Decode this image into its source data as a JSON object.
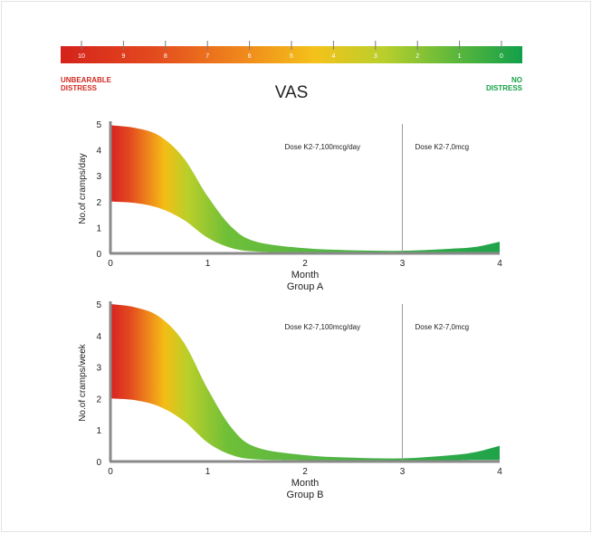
{
  "vas_scale": {
    "title": "VAS",
    "ticks": [
      "10",
      "9",
      "8",
      "7",
      "6",
      "5",
      "4",
      "3",
      "2",
      "1",
      "0"
    ],
    "left_label": [
      "UNBEARABLE",
      "DISTRESS"
    ],
    "right_label": [
      "NO",
      "DISTRESS"
    ],
    "left_color": "#d42a22",
    "right_color": "#14a146"
  },
  "chart_data": [
    {
      "type": "area",
      "title": "Group A",
      "xlabel": "Month",
      "ylabel": "No.of cramps/day",
      "xlim": [
        0,
        4
      ],
      "ylim": [
        0,
        5
      ],
      "xticks": [
        "0",
        "1",
        "2",
        "3",
        "4"
      ],
      "yticks": [
        "0",
        "1",
        "2",
        "3",
        "4",
        "5"
      ],
      "x": [
        0,
        0.25,
        0.5,
        0.75,
        1.0,
        1.25,
        1.5,
        2.0,
        2.5,
        3.0,
        3.5,
        3.75,
        4.0
      ],
      "upper": [
        4.95,
        4.85,
        4.55,
        3.7,
        2.2,
        1.0,
        0.45,
        0.2,
        0.12,
        0.1,
        0.18,
        0.25,
        0.45
      ],
      "lower": [
        2.0,
        1.95,
        1.75,
        1.3,
        0.6,
        0.2,
        0.07,
        0.04,
        0.03,
        0.03,
        0.04,
        0.05,
        0.05
      ],
      "vline_x": 3,
      "annotations": [
        "Dose K2-7,100mcg/day",
        "Dose K2-7,0mcg"
      ]
    },
    {
      "type": "area",
      "title": "Group B",
      "xlabel": "Month",
      "ylabel": "No.of cramps/week",
      "xlim": [
        0,
        4
      ],
      "ylim": [
        0,
        5
      ],
      "xticks": [
        "0",
        "1",
        "2",
        "3",
        "4"
      ],
      "yticks": [
        "0",
        "1",
        "2",
        "3",
        "4",
        "5"
      ],
      "x": [
        0,
        0.25,
        0.5,
        0.75,
        1.0,
        1.25,
        1.5,
        2.0,
        2.5,
        3.0,
        3.5,
        3.75,
        4.0
      ],
      "upper": [
        5.0,
        4.9,
        4.6,
        3.8,
        2.3,
        1.05,
        0.45,
        0.2,
        0.12,
        0.1,
        0.2,
        0.3,
        0.5
      ],
      "lower": [
        2.0,
        1.95,
        1.75,
        1.3,
        0.6,
        0.2,
        0.07,
        0.04,
        0.03,
        0.03,
        0.04,
        0.05,
        0.05
      ],
      "vline_x": 3,
      "annotations": [
        "Dose K2-7,100mcg/day",
        "Dose K2-7,0mcg"
      ]
    }
  ]
}
